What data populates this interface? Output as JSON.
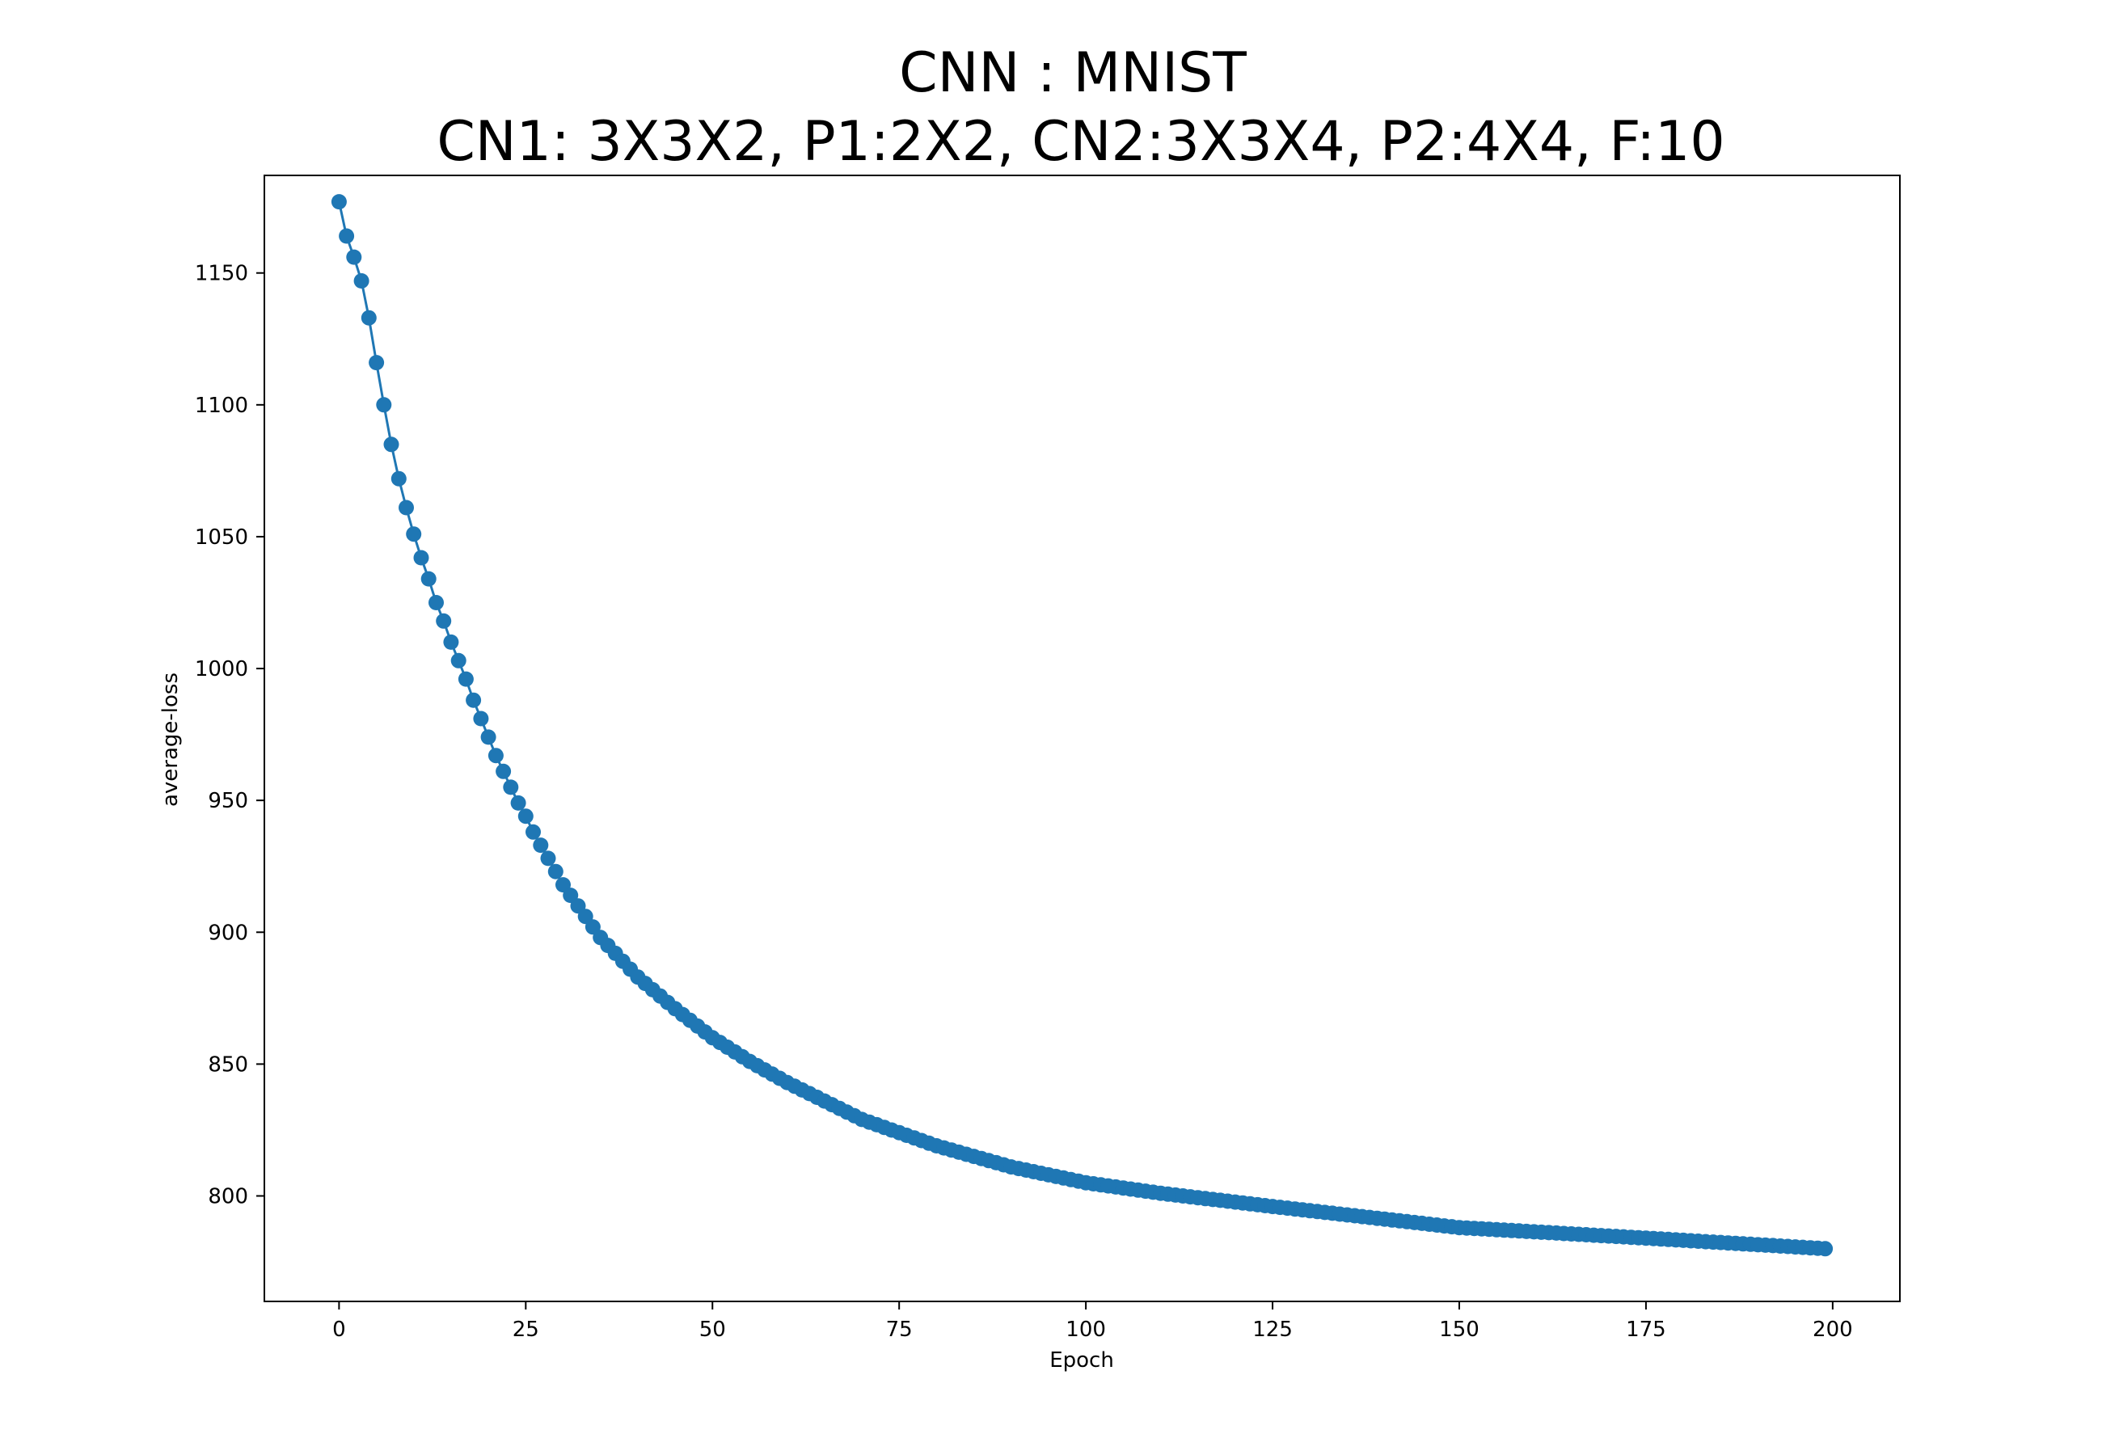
{
  "chart_data": {
    "type": "line",
    "title": "CNN : MNIST",
    "subtitle": "CN1: 3X3X2, P1:2X2, CN2:3X3X4, P2:4X4, F:10",
    "xlabel": "Epoch",
    "ylabel": "average-loss",
    "xlim": [
      -10,
      209
    ],
    "ylim": [
      760,
      1187
    ],
    "xticks": [
      0,
      25,
      50,
      75,
      100,
      125,
      150,
      175,
      200
    ],
    "yticks": [
      800,
      850,
      900,
      950,
      1000,
      1050,
      1100,
      1150
    ],
    "grid": false,
    "legend": "none",
    "series": [
      {
        "color": "#1f77b4",
        "marker": "circle",
        "keypoints_x": [
          0,
          1,
          2,
          3,
          4,
          5,
          6,
          7,
          8,
          9,
          10,
          11,
          12,
          13,
          14,
          15,
          16,
          17,
          18,
          19,
          20,
          21,
          22,
          23,
          24,
          25,
          26,
          27,
          28,
          29,
          30,
          31,
          32,
          33,
          34,
          35,
          40,
          45,
          50,
          55,
          60,
          65,
          70,
          75,
          80,
          90,
          100,
          110,
          125,
          150,
          175,
          199
        ],
        "keypoints_y": [
          1177,
          1164,
          1156,
          1147,
          1133,
          1116,
          1100,
          1085,
          1072,
          1061,
          1051,
          1042,
          1034,
          1025,
          1018,
          1010,
          1003,
          996,
          988,
          981,
          974,
          967,
          961,
          955,
          949,
          944,
          938,
          933,
          928,
          923,
          918,
          914,
          910,
          906,
          902,
          898,
          883,
          871,
          860,
          851,
          843,
          836,
          829,
          824,
          819,
          811,
          805,
          801,
          796,
          788,
          784,
          780
        ]
      }
    ]
  }
}
